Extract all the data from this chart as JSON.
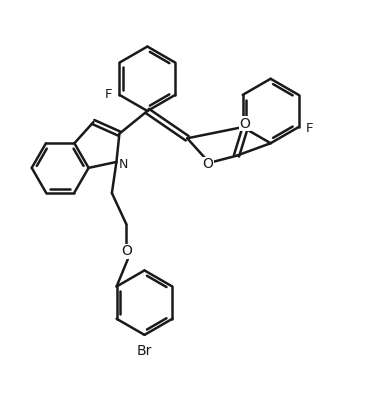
{
  "background": "#ffffff",
  "line_color": "#1a1a1a",
  "line_width": 1.8,
  "figsize": [
    3.82,
    4.04
  ],
  "dpi": 100,
  "xlim": [
    0,
    10
  ],
  "ylim": [
    0,
    10.5
  ]
}
